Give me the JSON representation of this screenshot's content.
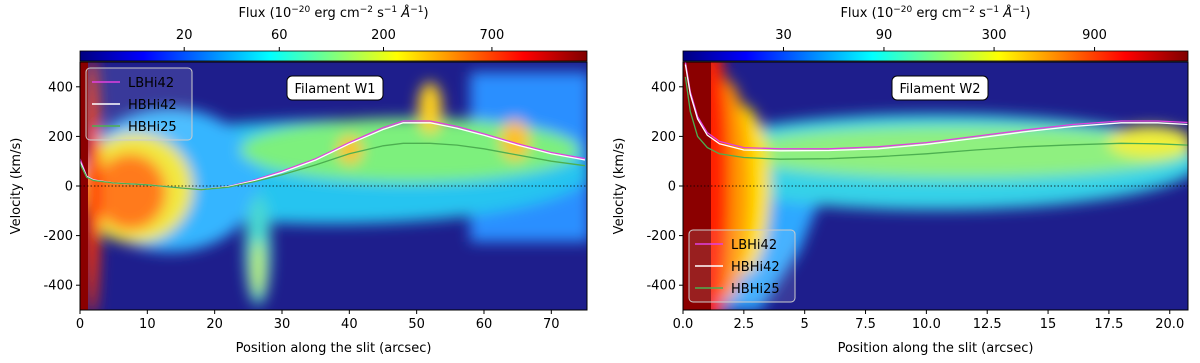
{
  "chart_data": [
    {
      "type": "line",
      "x_label": "Position along the slit (arcsec)",
      "y_label": "Velocity (km/s)",
      "annotation": "Filament W1",
      "xlim": [
        0,
        75.3
      ],
      "xticks": [
        0,
        10,
        20,
        30,
        40,
        50,
        60,
        70
      ],
      "ylim": [
        -500,
        500
      ],
      "yticks": [
        -400,
        -200,
        0,
        200,
        400
      ],
      "hline": 0,
      "legend": "upper left",
      "colorbar": {
        "clim": [
          6,
          2100
        ],
        "scale": "log",
        "ticks": [
          20,
          60,
          200,
          700
        ],
        "colors": [
          "#00007f",
          "#0000ff",
          "#007fff",
          "#00ffff",
          "#7fff7f",
          "#ffff00",
          "#ff7f00",
          "#ff0000",
          "#7f0000"
        ],
        "label_parts": [
          {
            "text": "Flux (10"
          },
          {
            "text": "−20",
            "sup": true
          },
          {
            "text": " erg cm"
          },
          {
            "text": "−2",
            "sup": true
          },
          {
            "text": " s"
          },
          {
            "text": "−1",
            "sup": true
          },
          {
            "text": " Å",
            "italic": true
          },
          {
            "text": "−1",
            "sup": true
          },
          {
            "text": ")"
          }
        ]
      },
      "x": [
        0,
        1,
        2,
        5,
        10,
        15,
        18,
        22,
        26,
        30,
        35,
        40,
        45,
        48,
        52,
        56,
        60,
        65,
        70,
        75
      ],
      "series": [
        {
          "name": "LBHi42",
          "color": "#e040e0",
          "values": [
            110,
            40,
            25,
            12,
            5,
            -8,
            -15,
            -2,
            25,
            60,
            110,
            175,
            235,
            262,
            262,
            240,
            210,
            170,
            135,
            110
          ]
        },
        {
          "name": "HBHi42",
          "color": "#ffffff",
          "values": [
            100,
            38,
            24,
            12,
            5,
            -8,
            -15,
            -3,
            22,
            55,
            105,
            170,
            228,
            255,
            255,
            233,
            205,
            165,
            130,
            105
          ]
        },
        {
          "name": "HBHi25",
          "color": "#4caf50",
          "values": [
            90,
            35,
            22,
            12,
            5,
            -8,
            -15,
            -5,
            18,
            45,
            85,
            130,
            162,
            172,
            172,
            165,
            150,
            125,
            100,
            82
          ]
        }
      ]
    },
    {
      "type": "line",
      "x_label": "Position along the slit (arcsec)",
      "y_label": "Velocity (km/s)",
      "annotation": "Filament W2",
      "xlim": [
        0,
        20.75
      ],
      "xticks": [
        {
          "value": 0,
          "label": "0.0"
        },
        2.5,
        5,
        7.5,
        {
          "value": 10,
          "label": "10.0"
        },
        12.5,
        15,
        17.5,
        {
          "value": 20,
          "label": "20.0"
        }
      ],
      "ylim": [
        -500,
        500
      ],
      "yticks": [
        -400,
        -200,
        0,
        200,
        400
      ],
      "hline": 0,
      "legend": "lower left",
      "colorbar": {
        "clim": [
          10,
          2500
        ],
        "scale": "log",
        "ticks": [
          30,
          90,
          300,
          900
        ],
        "colors": [
          "#00007f",
          "#0000ff",
          "#007fff",
          "#00ffff",
          "#7fff7f",
          "#ffff00",
          "#ff7f00",
          "#ff0000",
          "#7f0000"
        ],
        "label_parts": [
          {
            "text": "Flux (10"
          },
          {
            "text": "−20",
            "sup": true
          },
          {
            "text": " erg cm"
          },
          {
            "text": "−2",
            "sup": true
          },
          {
            "text": " s"
          },
          {
            "text": "−1",
            "sup": true
          },
          {
            "text": " Å",
            "italic": true
          },
          {
            "text": "−1",
            "sup": true
          },
          {
            "text": ")"
          }
        ]
      },
      "x": [
        0.1,
        0.3,
        0.6,
        1,
        1.5,
        2.5,
        4,
        6,
        8,
        10,
        12,
        14,
        16,
        18,
        19.5,
        20.75
      ],
      "series": [
        {
          "name": "LBHi42",
          "color": "#e040e0",
          "values": [
            500,
            380,
            280,
            215,
            180,
            155,
            150,
            150,
            158,
            175,
            200,
            225,
            248,
            262,
            262,
            256
          ]
        },
        {
          "name": "HBHi42",
          "color": "#ffffff",
          "values": [
            490,
            370,
            270,
            205,
            170,
            145,
            142,
            143,
            150,
            168,
            192,
            218,
            240,
            255,
            255,
            248
          ]
        },
        {
          "name": "HBHi25",
          "color": "#4caf50",
          "values": [
            440,
            300,
            200,
            155,
            130,
            115,
            108,
            110,
            118,
            130,
            145,
            158,
            166,
            172,
            170,
            165
          ]
        }
      ]
    }
  ]
}
